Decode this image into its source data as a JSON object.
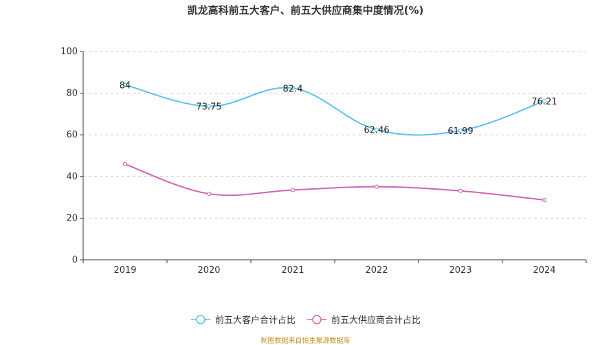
{
  "title": "凯龙高科前五大客户、前五大供应商集中度情况(%)",
  "source": "制图数据来自恒生聚源数据库",
  "chart_data": {
    "type": "line",
    "title": "凯龙高科前五大客户、前五大供应商集中度情况(%)",
    "categories": [
      "2019",
      "2020",
      "2021",
      "2022",
      "2023",
      "2024"
    ],
    "ylim": [
      0,
      100
    ],
    "yticks": [
      0,
      20,
      40,
      60,
      80,
      100
    ],
    "grid": true,
    "legend_position": "bottom",
    "series": [
      {
        "name": "前五大客户合计占比",
        "color": "#5bc0f0",
        "values": [
          84,
          73.75,
          82.4,
          62.46,
          61.99,
          76.21
        ],
        "labels": [
          "84",
          "73.75",
          "82.4",
          "62.46",
          "61.99",
          "76.21"
        ]
      },
      {
        "name": "前五大供应商合计占比",
        "color": "#d063b5",
        "values": [
          45.9,
          31.7,
          33.5,
          35.1,
          33.1,
          28.7
        ],
        "labels": []
      }
    ]
  }
}
